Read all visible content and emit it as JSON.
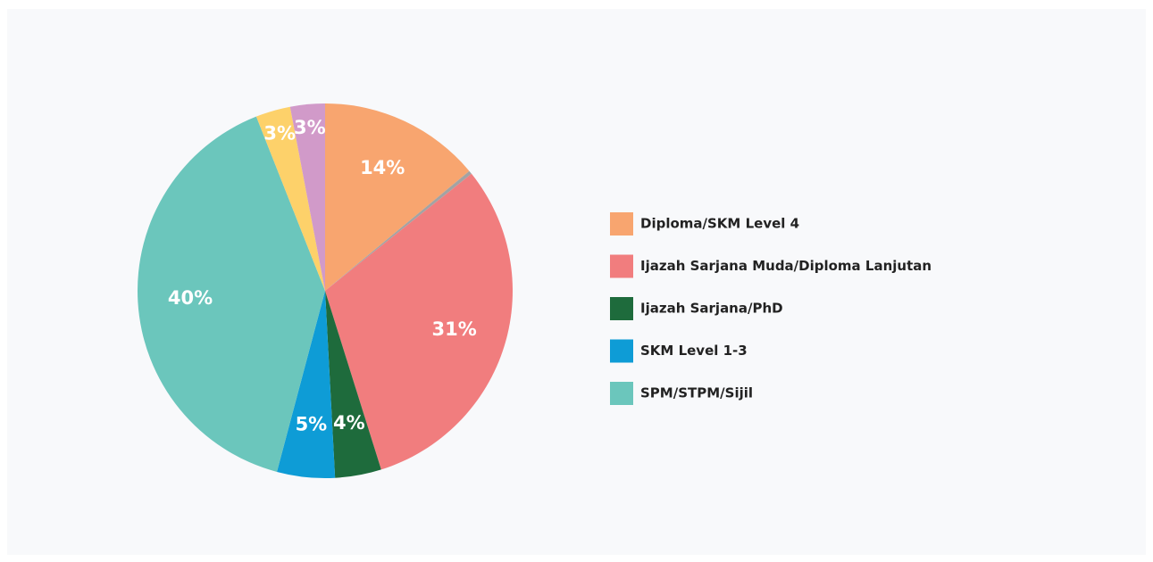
{
  "chart_data": {
    "type": "pie",
    "categories": [
      "Diploma/SKM Level 4",
      null,
      "Ijazah Sarjana Muda/Diploma Lanjutan",
      "Ijazah Sarjana/PhD",
      "SKM Level 1-3",
      "SPM/STPM/Sijil",
      null,
      null
    ],
    "values": [
      14,
      0.3,
      31,
      4,
      5,
      40,
      3,
      3
    ],
    "value_labels": [
      "14%",
      null,
      "31%",
      "4%",
      "5%",
      "40%",
      "3%",
      "3%"
    ],
    "colors": [
      "#f8a56f",
      "#a3a3a3",
      "#f17d7e",
      "#1e6b3c",
      "#0e9cd6",
      "#6bc6bc",
      "#fdd16a",
      "#d19ac9"
    ],
    "legend": "right"
  }
}
